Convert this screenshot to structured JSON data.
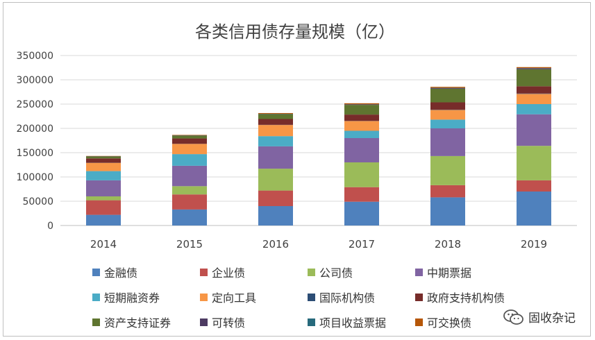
{
  "chart_data": {
    "type": "bar",
    "stacked": true,
    "title": "各类信用债存量规模（亿）",
    "xlabel": "",
    "ylabel": "",
    "categories": [
      "2014",
      "2015",
      "2016",
      "2017",
      "2018",
      "2019"
    ],
    "ylim": [
      0,
      350000
    ],
    "yticks": [
      0,
      50000,
      100000,
      150000,
      200000,
      250000,
      300000,
      350000
    ],
    "grid": true,
    "legend_position": "bottom",
    "series": [
      {
        "name": "金融债",
        "color": "#4F81BD",
        "values": [
          22000,
          33000,
          40000,
          49000,
          58000,
          70000
        ]
      },
      {
        "name": "企业债",
        "color": "#C0504D",
        "values": [
          30000,
          31000,
          32000,
          30000,
          25000,
          23000
        ]
      },
      {
        "name": "公司债",
        "color": "#9BBB59",
        "values": [
          8000,
          17000,
          45000,
          51000,
          60000,
          71000
        ]
      },
      {
        "name": "中期票据",
        "color": "#8064A2",
        "values": [
          33000,
          42000,
          46000,
          50000,
          57000,
          65000
        ]
      },
      {
        "name": "短期融资券",
        "color": "#4BACC6",
        "values": [
          19000,
          24000,
          21000,
          15000,
          18000,
          21000
        ]
      },
      {
        "name": "定向工具",
        "color": "#F79646",
        "values": [
          17000,
          21000,
          23000,
          20000,
          20000,
          21000
        ]
      },
      {
        "name": "国际机构债",
        "color": "#2C4D75",
        "values": [
          200,
          200,
          300,
          400,
          600,
          700
        ]
      },
      {
        "name": "政府支持机构债",
        "color": "#772C2A",
        "values": [
          9000,
          11000,
          12000,
          13000,
          15000,
          15000
        ]
      },
      {
        "name": "资产支持证券",
        "color": "#5F7530",
        "values": [
          4000,
          6000,
          10000,
          20000,
          28000,
          35000
        ]
      },
      {
        "name": "可转债",
        "color": "#4D3B62",
        "values": [
          500,
          500,
          500,
          1000,
          1500,
          2000
        ]
      },
      {
        "name": "项目收益票据",
        "color": "#276A7C",
        "values": [
          0,
          100,
          200,
          300,
          400,
          400
        ]
      },
      {
        "name": "可交换债",
        "color": "#B65708",
        "values": [
          500,
          800,
          1500,
          2000,
          2000,
          2000
        ]
      }
    ]
  },
  "watermark": {
    "text": "固收杂记"
  }
}
